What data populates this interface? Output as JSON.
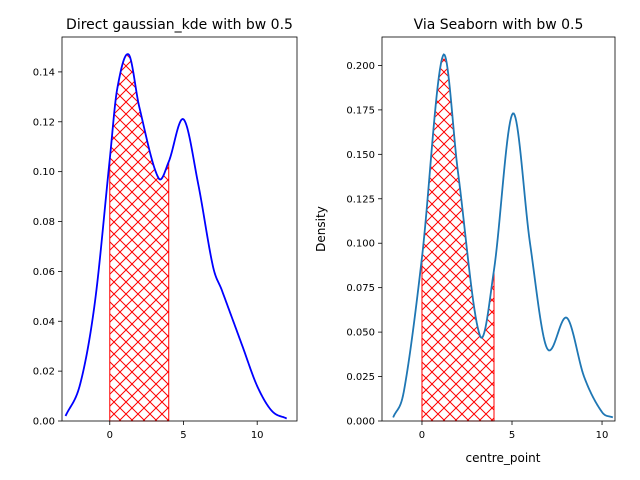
{
  "chart_data": [
    {
      "type": "line",
      "title": "Direct gaussian_kde with bw 0.5",
      "xlabel": "",
      "ylabel": "",
      "xlim": [
        -3.24,
        12.7
      ],
      "ylim": [
        0,
        0.154
      ],
      "xticks": [
        0,
        5,
        10
      ],
      "yticks": [
        0,
        0.02,
        0.04,
        0.06,
        0.08,
        0.1,
        0.12,
        0.14
      ],
      "ytick_labels": [
        "0.00",
        "0.02",
        "0.04",
        "0.06",
        "0.08",
        "0.10",
        "0.12",
        "0.14"
      ],
      "line_color": "#0000ff",
      "x": [
        -3,
        -2,
        -1,
        0,
        0.5,
        1.28,
        2,
        3.3,
        4,
        5,
        6,
        7,
        7.6,
        9,
        10,
        11,
        12
      ],
      "y": [
        0.002,
        0.015,
        0.048,
        0.105,
        0.133,
        0.147,
        0.126,
        0.0975,
        0.104,
        0.121,
        0.095,
        0.062,
        0.0525,
        0.03,
        0.014,
        0.004,
        0.001
      ],
      "shaded_region": {
        "from": 0,
        "to": 4,
        "color": "#ff0000",
        "hatch": "crosshatch"
      }
    },
    {
      "type": "line",
      "title": "Via Seaborn with bw 0.5",
      "xlabel": "centre_point",
      "ylabel": "Density",
      "xlim": [
        -2.22,
        10.72
      ],
      "ylim": [
        0,
        0.216
      ],
      "xticks": [
        0,
        5,
        10
      ],
      "yticks": [
        0,
        0.025,
        0.05,
        0.075,
        0.1,
        0.125,
        0.15,
        0.175,
        0.2
      ],
      "ytick_labels": [
        "0.000",
        "0.025",
        "0.050",
        "0.075",
        "0.100",
        "0.125",
        "0.150",
        "0.175",
        "0.200"
      ],
      "line_color": "#1f77b4",
      "x": [
        -1.6,
        -1,
        0,
        1.17,
        2,
        3.22,
        4,
        5.05,
        6,
        6.94,
        8.05,
        9,
        10,
        10.6
      ],
      "y": [
        0.002,
        0.017,
        0.092,
        0.2056,
        0.14,
        0.048,
        0.085,
        0.173,
        0.1,
        0.041,
        0.058,
        0.025,
        0.005,
        0.002
      ],
      "shaded_region": {
        "from": 0,
        "to": 4,
        "color": "#ff0000",
        "hatch": "crosshatch"
      }
    }
  ]
}
